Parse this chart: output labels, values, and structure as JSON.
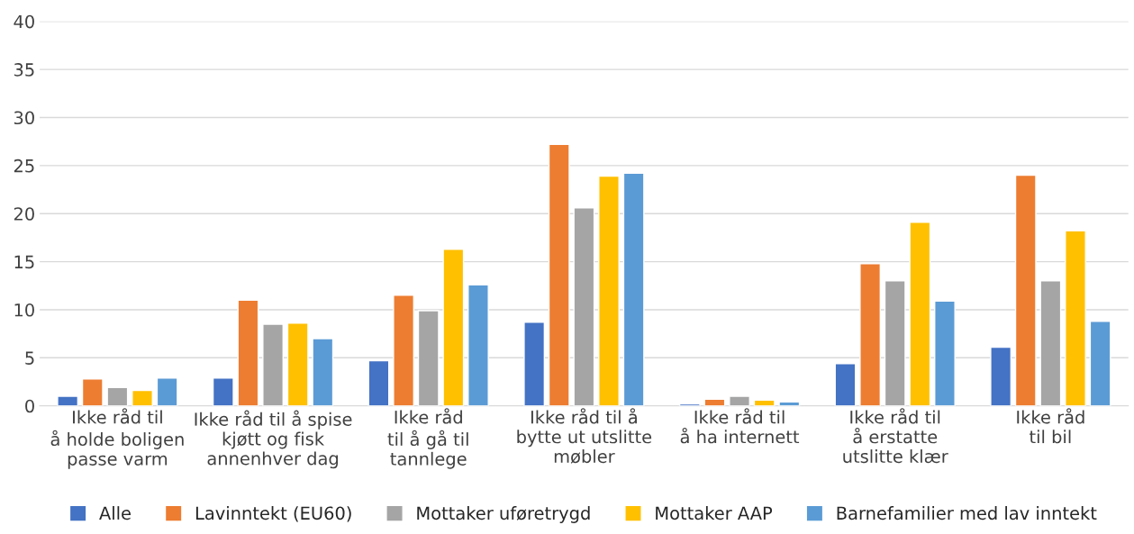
{
  "chart_data": {
    "type": "bar",
    "categories": [
      "Ikke råd til\nå holde boligen\npasse varm",
      "Ikke råd til å spise\nkjøtt og fisk\nannenhver dag",
      "Ikke råd\ntil å gå til\ntannlege",
      "Ikke råd til å\nbytte ut utslitte\nmøbler",
      "Ikke råd til\nå ha internett",
      "Ikke råd til\nå erstatte\nutslitte klær",
      "Ikke råd\ntil bil"
    ],
    "series": [
      {
        "name": "Alle",
        "color": "#4472c4",
        "values": [
          1.0,
          2.9,
          4.7,
          8.7,
          0.2,
          4.4,
          6.1
        ]
      },
      {
        "name": "Lavinntekt (EU60)",
        "color": "#ed7d31",
        "values": [
          2.8,
          11.0,
          11.5,
          27.2,
          0.7,
          14.8,
          24.0
        ]
      },
      {
        "name": "Mottaker uføretrygd",
        "color": "#a5a5a5",
        "values": [
          1.9,
          8.5,
          9.9,
          20.6,
          1.0,
          13.0,
          13.0
        ]
      },
      {
        "name": "Mottaker AAP",
        "color": "#ffc000",
        "values": [
          1.6,
          8.6,
          16.3,
          23.9,
          0.6,
          19.1,
          18.2
        ]
      },
      {
        "name": "Barnefamilier med lav inntekt",
        "color": "#5b9bd5",
        "values": [
          2.9,
          7.0,
          12.6,
          24.2,
          0.4,
          10.9,
          8.8
        ]
      }
    ],
    "ylim": [
      0,
      40
    ],
    "yticks": [
      0,
      5,
      10,
      15,
      20,
      25,
      30,
      35,
      40
    ],
    "grid": "y",
    "legend": "bottom"
  }
}
